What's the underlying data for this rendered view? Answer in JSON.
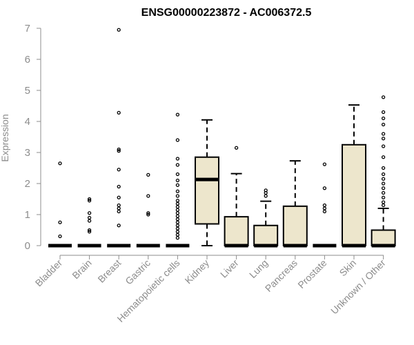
{
  "chart_data": {
    "type": "box",
    "title": "ENSG00000223872 - AC006372.5",
    "xlabel": "",
    "ylabel": "Expression",
    "ylim": [
      0,
      7
    ],
    "yticks": [
      0,
      1,
      2,
      3,
      4,
      5,
      6,
      7
    ],
    "box_fill": "#ede6cc",
    "categories": [
      "Bladder",
      "Brain",
      "Breast",
      "Gastric",
      "Hematopoietic cells",
      "Kidney",
      "Liver",
      "Lung",
      "Pancreas",
      "Prostate",
      "Skin",
      "Unknown / Other"
    ],
    "boxes": [
      {
        "q1": 0,
        "median": 0,
        "q3": 0,
        "whisker_low": 0,
        "whisker_high": 0,
        "outliers": [
          0.3,
          0.75,
          2.65
        ]
      },
      {
        "q1": 0,
        "median": 0,
        "q3": 0,
        "whisker_low": 0,
        "whisker_high": 0,
        "outliers": [
          0.45,
          0.5,
          0.8,
          0.9,
          1.05,
          1.45,
          1.5
        ]
      },
      {
        "q1": 0,
        "median": 0,
        "q3": 0,
        "whisker_low": 0,
        "whisker_high": 0,
        "outliers": [
          0.65,
          1.1,
          1.2,
          1.3,
          1.55,
          1.9,
          2.45,
          3.05,
          3.1,
          4.28,
          6.95
        ]
      },
      {
        "q1": 0,
        "median": 0,
        "q3": 0,
        "whisker_low": 0,
        "whisker_high": 0,
        "outliers": [
          1.0,
          1.05,
          1.6,
          2.28
        ]
      },
      {
        "q1": 0,
        "median": 0,
        "q3": 0,
        "whisker_low": 0,
        "whisker_high": 0,
        "outliers": [
          0.25,
          0.35,
          0.45,
          0.55,
          0.65,
          0.75,
          0.85,
          0.95,
          1.05,
          1.15,
          1.25,
          1.35,
          1.45,
          1.6,
          1.75,
          1.95,
          2.1,
          2.3,
          2.6,
          2.8,
          3.4,
          4.22
        ]
      },
      {
        "q1": 0.7,
        "median": 2.13,
        "q3": 2.85,
        "whisker_low": 0,
        "whisker_high": 4.05,
        "outliers": []
      },
      {
        "q1": 0,
        "median": 0,
        "q3": 0.93,
        "whisker_low": 0,
        "whisker_high": 2.32,
        "outliers": [
          3.15
        ]
      },
      {
        "q1": 0,
        "median": 0,
        "q3": 0.65,
        "whisker_low": 0,
        "whisker_high": 1.43,
        "outliers": [
          1.6,
          1.7,
          1.78
        ]
      },
      {
        "q1": 0,
        "median": 0,
        "q3": 1.27,
        "whisker_low": 0,
        "whisker_high": 2.73,
        "outliers": []
      },
      {
        "q1": 0,
        "median": 0,
        "q3": 0,
        "whisker_low": 0,
        "whisker_high": 0,
        "outliers": [
          1.1,
          1.2,
          1.3,
          1.85,
          2.62
        ]
      },
      {
        "q1": 0,
        "median": 0,
        "q3": 3.25,
        "whisker_low": 0,
        "whisker_high": 4.53,
        "outliers": []
      },
      {
        "q1": 0,
        "median": 0,
        "q3": 0.5,
        "whisker_low": 0,
        "whisker_high": 1.2,
        "outliers": [
          1.3,
          1.4,
          1.55,
          1.7,
          1.85,
          2.0,
          2.15,
          2.3,
          2.5,
          2.85,
          3.2,
          3.45,
          3.6,
          3.9,
          4.1,
          4.3,
          4.78
        ]
      }
    ]
  }
}
